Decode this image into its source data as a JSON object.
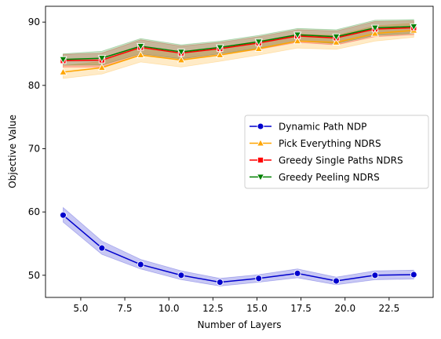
{
  "chart_data": {
    "type": "line",
    "title": "",
    "xlabel": "Number of Layers",
    "ylabel": "Objective Value",
    "xlim": [
      3.0,
      25.0
    ],
    "ylim": [
      46.5,
      92.5
    ],
    "xticks": [
      5.0,
      7.5,
      10.0,
      12.5,
      15.0,
      17.5,
      20.0,
      22.5
    ],
    "xtick_labels": [
      "5.0",
      "7.5",
      "10.0",
      "12.5",
      "15.0",
      "17.5",
      "20.0",
      "22.5"
    ],
    "yticks": [
      50,
      60,
      70,
      80,
      90
    ],
    "ytick_labels": [
      "50",
      "60",
      "70",
      "80",
      "90"
    ],
    "grid": false,
    "legend_position": "center-right",
    "x": [
      4.0,
      6.2,
      8.4,
      10.7,
      12.9,
      15.1,
      17.3,
      19.5,
      21.7,
      23.9
    ],
    "series": [
      {
        "name": "Dynamic Path NDP",
        "color": "#0000cd",
        "marker": "circle",
        "values": [
          59.5,
          54.3,
          51.7,
          50.0,
          48.9,
          49.5,
          50.3,
          49.1,
          50.0,
          50.1
        ],
        "lower": [
          58.4,
          53.3,
          51.0,
          49.3,
          48.3,
          48.9,
          49.6,
          48.5,
          49.3,
          49.4
        ],
        "upper": [
          60.7,
          55.4,
          52.5,
          50.7,
          49.5,
          50.1,
          51.0,
          49.7,
          50.7,
          50.8
        ]
      },
      {
        "name": "Pick Everything NDRS",
        "color": "#ffa500",
        "marker": "triangle-up",
        "values": [
          82.1,
          82.8,
          84.8,
          84.0,
          84.8,
          85.8,
          87.0,
          86.8,
          88.2,
          88.7
        ],
        "lower": [
          81.1,
          81.8,
          83.7,
          82.9,
          83.8,
          84.8,
          85.9,
          85.7,
          87.0,
          87.6
        ],
        "upper": [
          83.1,
          83.8,
          85.9,
          85.1,
          85.8,
          86.8,
          88.1,
          87.9,
          89.4,
          89.8
        ]
      },
      {
        "name": "Greedy Single Paths NDRS",
        "color": "#ff0000",
        "marker": "square",
        "values": [
          83.9,
          84.0,
          86.0,
          85.1,
          85.8,
          86.7,
          87.8,
          87.5,
          88.9,
          89.1
        ],
        "lower": [
          82.9,
          82.9,
          84.8,
          84.0,
          84.8,
          85.7,
          86.8,
          86.4,
          87.7,
          88.0
        ],
        "upper": [
          84.9,
          85.1,
          87.2,
          86.2,
          86.8,
          87.7,
          88.8,
          88.6,
          90.1,
          90.2
        ]
      },
      {
        "name": "Greedy Peeling NDRS",
        "color": "#008000",
        "marker": "triangle-down",
        "values": [
          84.1,
          84.3,
          86.2,
          85.3,
          86.0,
          86.9,
          88.0,
          87.7,
          89.1,
          89.3
        ],
        "lower": [
          83.2,
          83.2,
          85.0,
          84.2,
          85.0,
          85.9,
          87.0,
          86.6,
          87.9,
          88.2
        ],
        "upper": [
          85.0,
          85.4,
          87.4,
          86.4,
          87.0,
          87.9,
          89.0,
          88.8,
          90.3,
          90.4
        ]
      }
    ]
  }
}
